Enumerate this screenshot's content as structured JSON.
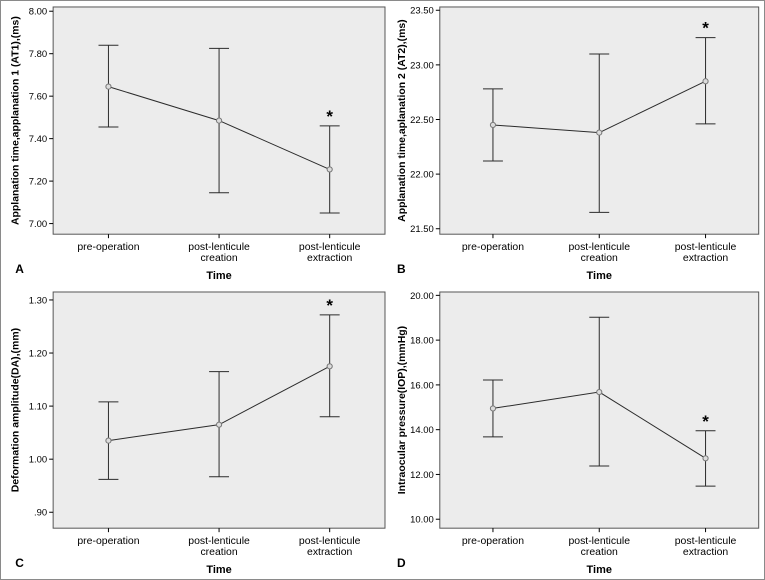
{
  "chart_data": [
    {
      "panel": "A",
      "type": "line",
      "xlabel": "Time",
      "ylabel": "Applanation time,applanation 1 (AT1),(ms)",
      "categories": [
        "pre-operation",
        "post-lenticule creation",
        "post-lenticule extraction"
      ],
      "category_lines": [
        [
          "pre-operation"
        ],
        [
          "post-lenticule",
          "creation"
        ],
        [
          "post-lenticule",
          "extraction"
        ]
      ],
      "values": [
        7.645,
        7.485,
        7.255
      ],
      "err_low": [
        7.455,
        7.145,
        7.05
      ],
      "err_high": [
        7.84,
        7.825,
        7.46
      ],
      "significance": [
        "",
        "",
        "*"
      ],
      "ylim": [
        6.95,
        8.02
      ],
      "yticks": [
        "7.00",
        "7.20",
        "7.40",
        "7.60",
        "7.80",
        "8.00"
      ]
    },
    {
      "panel": "B",
      "type": "line",
      "xlabel": "Time",
      "ylabel": "Applanation time,aplanation 2 (AT2),(ms)",
      "categories": [
        "pre-operation",
        "post-lenticule creation",
        "post-lenticule extraction"
      ],
      "category_lines": [
        [
          "pre-operation"
        ],
        [
          "post-lenticule",
          "creation"
        ],
        [
          "post-lenticule",
          "extraction"
        ]
      ],
      "values": [
        22.45,
        22.38,
        22.85
      ],
      "err_low": [
        22.12,
        21.65,
        22.46
      ],
      "err_high": [
        22.78,
        23.1,
        23.25
      ],
      "significance": [
        "",
        "",
        "*"
      ],
      "ylim": [
        21.45,
        23.53
      ],
      "yticks": [
        "21.50",
        "22.00",
        "22.50",
        "23.00",
        "23.50"
      ]
    },
    {
      "panel": "C",
      "type": "line",
      "xlabel": "Time",
      "ylabel": "Deformation amplitude(DA),(mm)",
      "categories": [
        "pre-operation",
        "post-lenticule creation",
        "post-lenticule extraction"
      ],
      "category_lines": [
        [
          "pre-operation"
        ],
        [
          "post-lenticule",
          "creation"
        ],
        [
          "post-lenticule",
          "extraction"
        ]
      ],
      "values": [
        1.035,
        1.065,
        1.175
      ],
      "err_low": [
        0.962,
        0.967,
        1.08
      ],
      "err_high": [
        1.108,
        1.165,
        1.272
      ],
      "significance": [
        "",
        "",
        "*"
      ],
      "ylim": [
        0.87,
        1.315
      ],
      "yticks": [
        ".90",
        "1.00",
        "1.10",
        "1.20",
        "1.30"
      ]
    },
    {
      "panel": "D",
      "type": "line",
      "xlabel": "Time",
      "ylabel": "Intraocular pressure(IOP),(mmHg)",
      "categories": [
        "pre-operation",
        "post-lenticule creation",
        "post-lenticule extraction"
      ],
      "category_lines": [
        [
          "pre-operation"
        ],
        [
          "post-lenticule",
          "creation"
        ],
        [
          "post-lenticule",
          "extraction"
        ]
      ],
      "values": [
        14.95,
        15.68,
        12.72
      ],
      "err_low": [
        13.68,
        12.38,
        11.48
      ],
      "err_high": [
        16.22,
        19.02,
        13.95
      ],
      "significance": [
        "",
        "",
        "*"
      ],
      "ylim": [
        9.6,
        20.15
      ],
      "yticks": [
        "10.00",
        "12.00",
        "14.00",
        "16.00",
        "18.00",
        "20.00"
      ]
    }
  ],
  "colors": {
    "plot_background": "#ececec",
    "line": "#2b2b2b",
    "marker": "#777777",
    "frame": "#555555"
  }
}
